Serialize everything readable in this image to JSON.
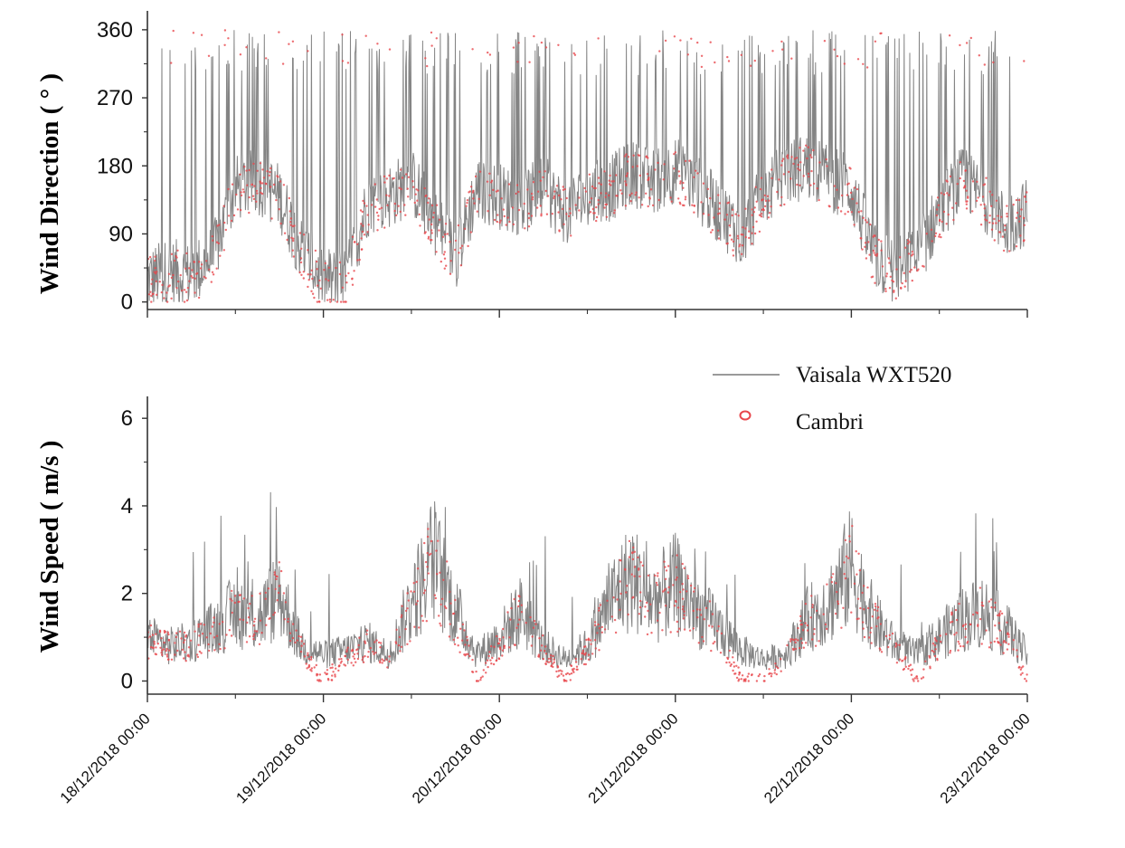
{
  "chart_data": [
    {
      "type": "line",
      "ylabel": "Wind Direction ( ° )",
      "xlabel": "",
      "x_tick_labels": [
        "18/12/2018 00:00",
        "19/12/2018 00:00",
        "20/12/2018 00:00",
        "21/12/2018 00:00",
        "22/12/2018 00:00",
        "23/12/2018 00:00"
      ],
      "y_ticks": [
        0,
        90,
        180,
        270,
        360
      ],
      "xlim": [
        "18/12/2018 00:00",
        "23/12/2018 00:00"
      ],
      "ylim": [
        -10,
        385
      ],
      "series": [
        {
          "name": "Vaisala WXT520",
          "style": "line",
          "color": "#6e6e6e",
          "x_hours": [
            0,
            3,
            6,
            9,
            12,
            15,
            18,
            21,
            24,
            27,
            30,
            33,
            36,
            39,
            42,
            45,
            48,
            51,
            54,
            57,
            60,
            63,
            66,
            69,
            72,
            75,
            78,
            81,
            84,
            87,
            90,
            93,
            96,
            99,
            102,
            105,
            108,
            111,
            114,
            117,
            120
          ],
          "values": [
            30,
            40,
            35,
            60,
            150,
            160,
            140,
            70,
            30,
            25,
            130,
            140,
            160,
            110,
            60,
            150,
            140,
            130,
            150,
            120,
            140,
            150,
            170,
            160,
            175,
            150,
            120,
            90,
            140,
            170,
            180,
            165,
            150,
            60,
            40,
            60,
            120,
            160,
            140,
            100,
            120
          ]
        },
        {
          "name": "Cambri",
          "style": "scatter",
          "color": "#e8474c",
          "x_hours": [
            0,
            3,
            6,
            9,
            12,
            15,
            18,
            21,
            24,
            27,
            30,
            33,
            36,
            39,
            42,
            45,
            48,
            51,
            54,
            57,
            60,
            63,
            66,
            69,
            72,
            75,
            78,
            81,
            84,
            87,
            90,
            93,
            96,
            99,
            102,
            105,
            108,
            111,
            114,
            117,
            120
          ],
          "values": [
            25,
            35,
            30,
            55,
            145,
            155,
            135,
            65,
            20,
            20,
            125,
            135,
            155,
            105,
            55,
            145,
            135,
            125,
            145,
            115,
            135,
            145,
            165,
            155,
            170,
            145,
            115,
            85,
            135,
            165,
            175,
            160,
            145,
            55,
            35,
            55,
            115,
            155,
            135,
            95,
            115
          ]
        }
      ]
    },
    {
      "type": "line",
      "ylabel": "Wind Speed ( m/s )",
      "xlabel": "",
      "x_tick_labels": [
        "18/12/2018 00:00",
        "19/12/2018 00:00",
        "20/12/2018 00:00",
        "21/12/2018 00:00",
        "22/12/2018 00:00",
        "23/12/2018 00:00"
      ],
      "y_ticks": [
        0,
        2,
        4,
        6
      ],
      "xlim": [
        "18/12/2018 00:00",
        "23/12/2018 00:00"
      ],
      "ylim": [
        -0.3,
        6.5
      ],
      "legend_position": "top-right",
      "series": [
        {
          "name": "Vaisala WXT520",
          "style": "line",
          "color": "#6e6e6e",
          "x_hours": [
            0,
            3,
            6,
            9,
            12,
            15,
            18,
            21,
            24,
            27,
            30,
            33,
            36,
            39,
            42,
            45,
            48,
            51,
            54,
            57,
            60,
            63,
            66,
            69,
            72,
            75,
            78,
            81,
            84,
            87,
            90,
            93,
            96,
            99,
            102,
            105,
            108,
            111,
            114,
            117,
            120
          ],
          "values": [
            1.0,
            0.8,
            0.9,
            1.2,
            1.6,
            1.4,
            2.0,
            0.8,
            0.6,
            0.7,
            0.9,
            0.6,
            1.8,
            2.8,
            1.6,
            0.6,
            1.0,
            1.6,
            0.8,
            0.5,
            0.8,
            1.8,
            2.4,
            1.8,
            2.2,
            1.6,
            1.2,
            0.7,
            0.5,
            0.6,
            1.4,
            1.8,
            2.6,
            1.4,
            0.8,
            0.6,
            1.0,
            1.4,
            1.6,
            1.2,
            0.6
          ]
        },
        {
          "name": "Cambri",
          "style": "scatter",
          "color": "#e8474c",
          "x_hours": [
            0,
            3,
            6,
            9,
            12,
            15,
            18,
            21,
            24,
            27,
            30,
            33,
            36,
            39,
            42,
            45,
            48,
            51,
            54,
            57,
            60,
            63,
            66,
            69,
            72,
            75,
            78,
            81,
            84,
            87,
            90,
            93,
            96,
            99,
            102,
            105,
            108,
            111,
            114,
            117,
            120
          ],
          "values": [
            0.9,
            0.8,
            0.8,
            1.1,
            1.5,
            1.4,
            1.9,
            0.7,
            0.0,
            0.5,
            0.8,
            0.5,
            1.7,
            2.7,
            1.5,
            0.0,
            0.9,
            1.5,
            0.7,
            0.0,
            0.7,
            1.7,
            2.3,
            1.7,
            2.1,
            1.5,
            1.1,
            0.0,
            0.0,
            0.5,
            1.3,
            1.7,
            2.5,
            1.3,
            0.7,
            0.0,
            0.9,
            1.3,
            1.5,
            1.1,
            0.0
          ]
        }
      ]
    }
  ],
  "legend": {
    "items": [
      {
        "label": "Vaisala WXT520",
        "marker": "line",
        "color": "#9a9a9a"
      },
      {
        "label": "Cambri",
        "marker": "circle",
        "color": "#e8474c"
      }
    ]
  }
}
